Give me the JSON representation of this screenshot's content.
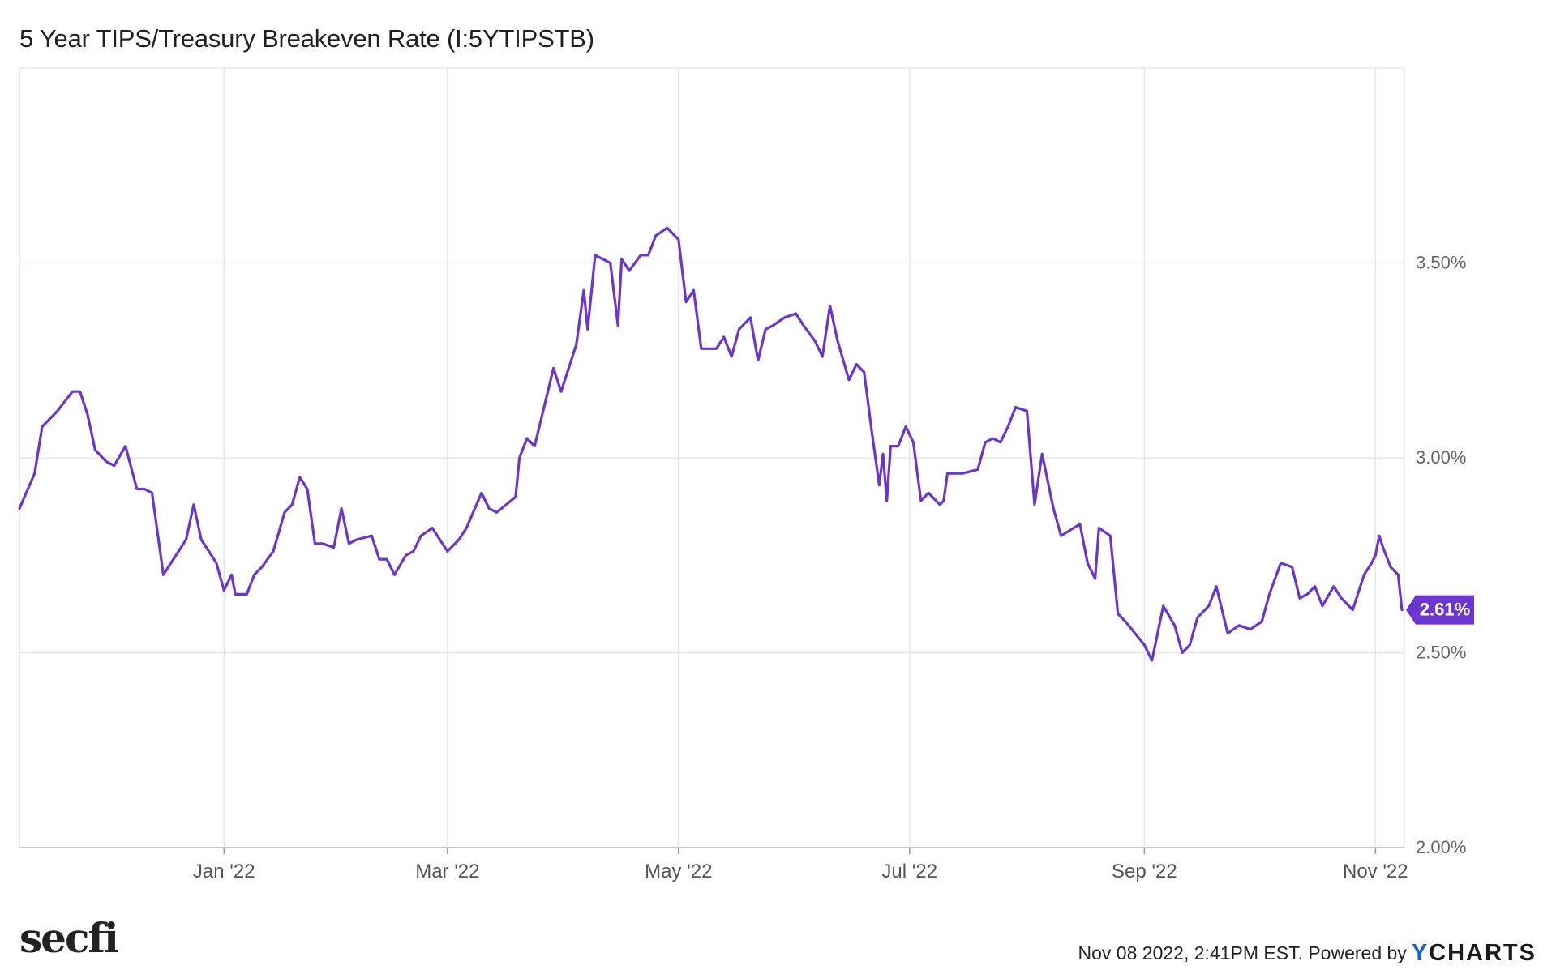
{
  "header": {
    "title": "5 Year TIPS/Treasury Breakeven Rate (I:5YTIPSTB)"
  },
  "footer": {
    "logo": "secfi",
    "timestamp": "Nov 08 2022, 2:41PM EST. Powered by",
    "brand_y": "Y",
    "brand_rest": "CHARTS"
  },
  "colors": {
    "line": "#6a35d0",
    "grid": "#e6e6e6",
    "badge": "#6a35d0"
  },
  "chart_data": {
    "type": "line",
    "title": "5 Year TIPS/Treasury Breakeven Rate (I:5YTIPSTB)",
    "y_unit": "%",
    "ylim": [
      2.0,
      4.0
    ],
    "y_ticks": [
      {
        "value": 2.0,
        "label": "2.00%"
      },
      {
        "value": 2.5,
        "label": "2.50%"
      },
      {
        "value": 3.0,
        "label": "3.00%"
      },
      {
        "value": 3.5,
        "label": "3.50%"
      }
    ],
    "xlim": [
      "2021-11-08",
      "2022-11-08"
    ],
    "x_ticks": [
      {
        "date": "2022-01-01",
        "label": "Jan '22"
      },
      {
        "date": "2022-03-01",
        "label": "Mar '22"
      },
      {
        "date": "2022-05-01",
        "label": "May '22"
      },
      {
        "date": "2022-07-01",
        "label": "Jul '22"
      },
      {
        "date": "2022-09-01",
        "label": "Sep '22"
      },
      {
        "date": "2022-11-01",
        "label": "Nov '22"
      }
    ],
    "grid": true,
    "last_value_label": "2.61%",
    "series": [
      {
        "points": [
          [
            "2021-11-08",
            2.87
          ],
          [
            "2021-11-12",
            2.96
          ],
          [
            "2021-11-14",
            3.08
          ],
          [
            "2021-11-18",
            3.12
          ],
          [
            "2021-11-22",
            3.17
          ],
          [
            "2021-11-24",
            3.17
          ],
          [
            "2021-11-26",
            3.11
          ],
          [
            "2021-11-28",
            3.02
          ],
          [
            "2021-12-01",
            2.99
          ],
          [
            "2021-12-03",
            2.98
          ],
          [
            "2021-12-06",
            3.03
          ],
          [
            "2021-12-09",
            2.92
          ],
          [
            "2021-12-11",
            2.92
          ],
          [
            "2021-12-13",
            2.91
          ],
          [
            "2021-12-16",
            2.7
          ],
          [
            "2021-12-18",
            2.73
          ],
          [
            "2021-12-22",
            2.79
          ],
          [
            "2021-12-24",
            2.88
          ],
          [
            "2021-12-26",
            2.79
          ],
          [
            "2021-12-28",
            2.76
          ],
          [
            "2021-12-30",
            2.73
          ],
          [
            "2022-01-01",
            2.66
          ],
          [
            "2022-01-03",
            2.7
          ],
          [
            "2022-01-04",
            2.65
          ],
          [
            "2022-01-07",
            2.65
          ],
          [
            "2022-01-09",
            2.7
          ],
          [
            "2022-01-11",
            2.72
          ],
          [
            "2022-01-14",
            2.76
          ],
          [
            "2022-01-17",
            2.86
          ],
          [
            "2022-01-19",
            2.88
          ],
          [
            "2022-01-21",
            2.95
          ],
          [
            "2022-01-23",
            2.92
          ],
          [
            "2022-01-25",
            2.78
          ],
          [
            "2022-01-27",
            2.78
          ],
          [
            "2022-01-30",
            2.77
          ],
          [
            "2022-02-01",
            2.87
          ],
          [
            "2022-02-03",
            2.78
          ],
          [
            "2022-02-05",
            2.79
          ],
          [
            "2022-02-09",
            2.8
          ],
          [
            "2022-02-11",
            2.74
          ],
          [
            "2022-02-13",
            2.74
          ],
          [
            "2022-02-15",
            2.7
          ],
          [
            "2022-02-18",
            2.75
          ],
          [
            "2022-02-20",
            2.76
          ],
          [
            "2022-02-22",
            2.8
          ],
          [
            "2022-02-25",
            2.82
          ],
          [
            "2022-02-27",
            2.79
          ],
          [
            "2022-03-01",
            2.76
          ],
          [
            "2022-03-04",
            2.79
          ],
          [
            "2022-03-06",
            2.82
          ],
          [
            "2022-03-10",
            2.91
          ],
          [
            "2022-03-12",
            2.87
          ],
          [
            "2022-03-14",
            2.86
          ],
          [
            "2022-03-19",
            2.9
          ],
          [
            "2022-03-20",
            3.0
          ],
          [
            "2022-03-22",
            3.05
          ],
          [
            "2022-03-24",
            3.03
          ],
          [
            "2022-03-27",
            3.15
          ],
          [
            "2022-03-29",
            3.23
          ],
          [
            "2022-03-31",
            3.17
          ],
          [
            "2022-04-04",
            3.29
          ],
          [
            "2022-04-06",
            3.43
          ],
          [
            "2022-04-07",
            3.33
          ],
          [
            "2022-04-09",
            3.52
          ],
          [
            "2022-04-13",
            3.5
          ],
          [
            "2022-04-15",
            3.34
          ],
          [
            "2022-04-16",
            3.51
          ],
          [
            "2022-04-18",
            3.48
          ],
          [
            "2022-04-21",
            3.52
          ],
          [
            "2022-04-23",
            3.52
          ],
          [
            "2022-04-25",
            3.57
          ],
          [
            "2022-04-28",
            3.59
          ],
          [
            "2022-05-01",
            3.56
          ],
          [
            "2022-05-03",
            3.4
          ],
          [
            "2022-05-05",
            3.43
          ],
          [
            "2022-05-07",
            3.28
          ],
          [
            "2022-05-11",
            3.28
          ],
          [
            "2022-05-13",
            3.31
          ],
          [
            "2022-05-15",
            3.26
          ],
          [
            "2022-05-17",
            3.33
          ],
          [
            "2022-05-20",
            3.36
          ],
          [
            "2022-05-22",
            3.25
          ],
          [
            "2022-05-24",
            3.33
          ],
          [
            "2022-05-26",
            3.34
          ],
          [
            "2022-05-29",
            3.36
          ],
          [
            "2022-06-01",
            3.37
          ],
          [
            "2022-06-03",
            3.34
          ],
          [
            "2022-06-06",
            3.3
          ],
          [
            "2022-06-08",
            3.26
          ],
          [
            "2022-06-10",
            3.39
          ],
          [
            "2022-06-12",
            3.3
          ],
          [
            "2022-06-15",
            3.2
          ],
          [
            "2022-06-17",
            3.24
          ],
          [
            "2022-06-19",
            3.22
          ],
          [
            "2022-06-21",
            3.07
          ],
          [
            "2022-06-23",
            2.93
          ],
          [
            "2022-06-24",
            3.01
          ],
          [
            "2022-06-25",
            2.89
          ],
          [
            "2022-06-26",
            3.03
          ],
          [
            "2022-06-28",
            3.03
          ],
          [
            "2022-06-30",
            3.08
          ],
          [
            "2022-07-02",
            3.04
          ],
          [
            "2022-07-04",
            2.89
          ],
          [
            "2022-07-06",
            2.91
          ],
          [
            "2022-07-09",
            2.88
          ],
          [
            "2022-07-10",
            2.89
          ],
          [
            "2022-07-11",
            2.96
          ],
          [
            "2022-07-15",
            2.96
          ],
          [
            "2022-07-19",
            2.97
          ],
          [
            "2022-07-21",
            3.04
          ],
          [
            "2022-07-23",
            3.05
          ],
          [
            "2022-07-25",
            3.04
          ],
          [
            "2022-07-27",
            3.08
          ],
          [
            "2022-07-29",
            3.13
          ],
          [
            "2022-08-01",
            3.12
          ],
          [
            "2022-08-03",
            2.88
          ],
          [
            "2022-08-05",
            3.01
          ],
          [
            "2022-08-08",
            2.87
          ],
          [
            "2022-08-10",
            2.8
          ],
          [
            "2022-08-15",
            2.83
          ],
          [
            "2022-08-17",
            2.73
          ],
          [
            "2022-08-19",
            2.69
          ],
          [
            "2022-08-20",
            2.82
          ],
          [
            "2022-08-23",
            2.8
          ],
          [
            "2022-08-25",
            2.6
          ],
          [
            "2022-08-27",
            2.58
          ],
          [
            "2022-09-01",
            2.52
          ],
          [
            "2022-09-03",
            2.48
          ],
          [
            "2022-09-06",
            2.62
          ],
          [
            "2022-09-09",
            2.57
          ],
          [
            "2022-09-11",
            2.5
          ],
          [
            "2022-09-13",
            2.52
          ],
          [
            "2022-09-15",
            2.59
          ],
          [
            "2022-09-18",
            2.62
          ],
          [
            "2022-09-20",
            2.67
          ],
          [
            "2022-09-23",
            2.55
          ],
          [
            "2022-09-26",
            2.57
          ],
          [
            "2022-09-29",
            2.56
          ],
          [
            "2022-10-02",
            2.58
          ],
          [
            "2022-10-04",
            2.65
          ],
          [
            "2022-10-07",
            2.73
          ],
          [
            "2022-10-10",
            2.72
          ],
          [
            "2022-10-12",
            2.64
          ],
          [
            "2022-10-14",
            2.65
          ],
          [
            "2022-10-16",
            2.67
          ],
          [
            "2022-10-18",
            2.62
          ],
          [
            "2022-10-21",
            2.67
          ],
          [
            "2022-10-23",
            2.64
          ],
          [
            "2022-10-26",
            2.61
          ],
          [
            "2022-10-29",
            2.7
          ],
          [
            "2022-10-31",
            2.73
          ],
          [
            "2022-11-01",
            2.75
          ],
          [
            "2022-11-02",
            2.8
          ],
          [
            "2022-11-03",
            2.77
          ],
          [
            "2022-11-05",
            2.72
          ],
          [
            "2022-11-07",
            2.7
          ],
          [
            "2022-11-08",
            2.61
          ]
        ]
      }
    ]
  }
}
